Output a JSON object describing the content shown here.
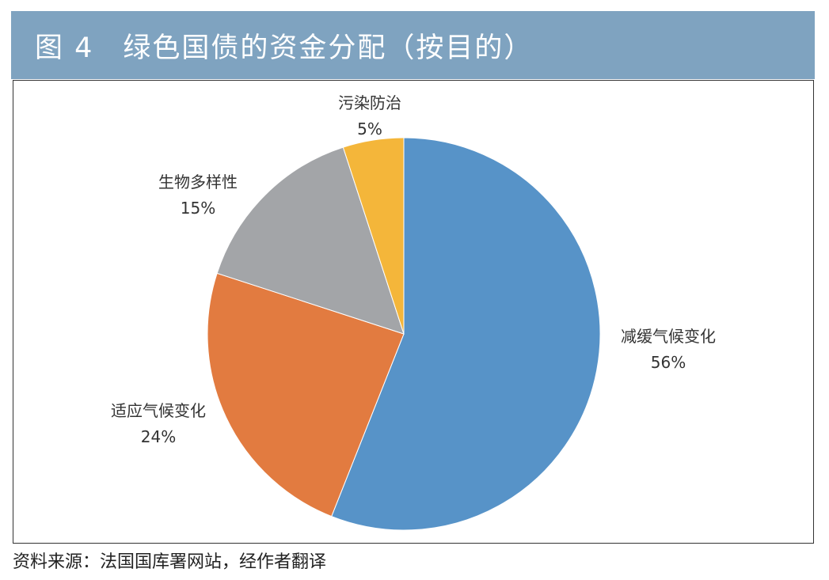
{
  "header": {
    "title": "图 4　绿色国债的资金分配（按目的）"
  },
  "chart_data": {
    "type": "pie",
    "title": "图 4　绿色国债的资金分配（按目的）",
    "slices": [
      {
        "label": "减缓气候变化",
        "value": 56,
        "value_label": "56%",
        "color": "#5793c8"
      },
      {
        "label": "适应气候变化",
        "value": 24,
        "value_label": "24%",
        "color": "#e27b40"
      },
      {
        "label": "生物多样性",
        "value": 15,
        "value_label": "15%",
        "color": "#a3a5a8"
      },
      {
        "label": "污染防治",
        "value": 5,
        "value_label": "5%",
        "color": "#f4b63a"
      }
    ]
  },
  "footer": {
    "source": "资料来源：法国国库署网站，经作者翻译"
  }
}
